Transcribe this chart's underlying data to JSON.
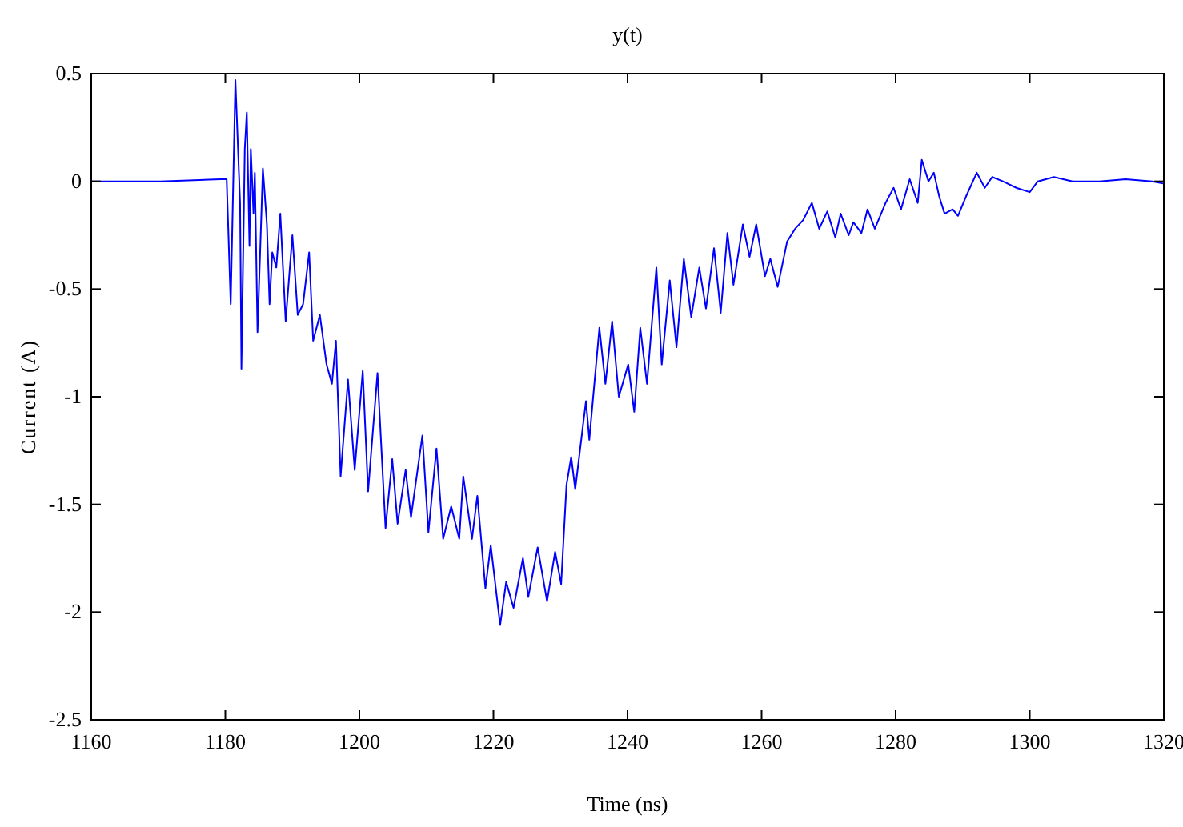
{
  "chart_data": {
    "type": "line",
    "title": "y(t)",
    "xlabel": "Time (ns)",
    "ylabel": "Current (A)",
    "xlim": [
      1160,
      1320
    ],
    "xticks": [
      1160,
      1180,
      1200,
      1220,
      1240,
      1260,
      1280,
      1300,
      1320
    ],
    "ylim": [
      -2.5,
      0.5
    ],
    "yticks": [
      -2.5,
      -2,
      -1.5,
      -1,
      -0.5,
      0,
      0.5
    ],
    "grid": false,
    "marker": "none",
    "line_style": "solid",
    "series": [
      {
        "color": "#0000ff",
        "x": [
          1160,
          1170.3,
          1179.3,
          1180.2,
          1180.8,
          1181.5,
          1182.2,
          1182.4,
          1182.9,
          1183.2,
          1183.6,
          1183.8,
          1184.2,
          1184.4,
          1184.8,
          1185.6,
          1186.2,
          1186.6,
          1187.0,
          1187.6,
          1188.2,
          1189.0,
          1190.0,
          1190.8,
          1191.6,
          1192.5,
          1193.1,
          1194.1,
          1195.1,
          1195.9,
          1196.5,
          1197.2,
          1198.3,
          1199.3,
          1200.5,
          1201.3,
          1202.7,
          1203.9,
          1204.9,
          1205.7,
          1206.9,
          1207.7,
          1209.4,
          1210.3,
          1211.5,
          1212.5,
          1213.7,
          1214.9,
          1215.5,
          1216.8,
          1217.6,
          1218.8,
          1219.6,
          1221.0,
          1221.9,
          1223.0,
          1224.4,
          1225.2,
          1226.6,
          1228.0,
          1229.2,
          1230.1,
          1230.9,
          1231.6,
          1232.2,
          1233.8,
          1234.3,
          1235.8,
          1236.7,
          1237.7,
          1238.7,
          1240.1,
          1241.0,
          1241.9,
          1242.9,
          1244.3,
          1245.1,
          1246.3,
          1247.3,
          1248.4,
          1249.5,
          1250.7,
          1251.7,
          1252.9,
          1253.9,
          1254.9,
          1255.8,
          1257.2,
          1258.2,
          1259.2,
          1260.5,
          1261.3,
          1262.4,
          1263.8,
          1265.0,
          1266.2,
          1267.5,
          1268.6,
          1269.8,
          1271.0,
          1271.8,
          1273.0,
          1273.7,
          1274.9,
          1275.8,
          1276.9,
          1278.5,
          1279.7,
          1280.8,
          1282.1,
          1283.3,
          1283.9,
          1284.9,
          1285.7,
          1286.5,
          1287.3,
          1288.5,
          1289.3,
          1290.5,
          1292.1,
          1293.3,
          1294.4,
          1296.0,
          1298.0,
          1300.0,
          1301.2,
          1303.6,
          1306.4,
          1310.4,
          1314.3,
          1318.3,
          1319.9
        ],
        "values": [
          0,
          0,
          0.01,
          0.01,
          -0.57,
          0.47,
          -0.1,
          -0.87,
          0.15,
          0.32,
          -0.3,
          0.15,
          -0.15,
          0.04,
          -0.7,
          0.06,
          -0.2,
          -0.57,
          -0.33,
          -0.4,
          -0.15,
          -0.65,
          -0.25,
          -0.62,
          -0.57,
          -0.33,
          -0.74,
          -0.62,
          -0.85,
          -0.94,
          -0.74,
          -1.37,
          -0.92,
          -1.34,
          -0.88,
          -1.44,
          -0.89,
          -1.61,
          -1.29,
          -1.59,
          -1.34,
          -1.56,
          -1.18,
          -1.63,
          -1.24,
          -1.66,
          -1.51,
          -1.66,
          -1.37,
          -1.66,
          -1.46,
          -1.89,
          -1.69,
          -2.06,
          -1.86,
          -1.98,
          -1.75,
          -1.93,
          -1.7,
          -1.95,
          -1.72,
          -1.87,
          -1.41,
          -1.28,
          -1.43,
          -1.02,
          -1.2,
          -0.68,
          -0.94,
          -0.65,
          -1.0,
          -0.85,
          -1.07,
          -0.68,
          -0.94,
          -0.4,
          -0.85,
          -0.46,
          -0.77,
          -0.36,
          -0.63,
          -0.4,
          -0.59,
          -0.31,
          -0.61,
          -0.24,
          -0.48,
          -0.2,
          -0.35,
          -0.2,
          -0.44,
          -0.36,
          -0.49,
          -0.28,
          -0.22,
          -0.18,
          -0.1,
          -0.22,
          -0.14,
          -0.26,
          -0.15,
          -0.25,
          -0.19,
          -0.24,
          -0.13,
          -0.22,
          -0.1,
          -0.03,
          -0.13,
          0.01,
          -0.1,
          0.1,
          0,
          0.04,
          -0.07,
          -0.15,
          -0.13,
          -0.16,
          -0.07,
          0.04,
          -0.03,
          0.02,
          0,
          -0.03,
          -0.05,
          0,
          0.02,
          0,
          0,
          0.01,
          0,
          -0.01
        ]
      }
    ]
  }
}
